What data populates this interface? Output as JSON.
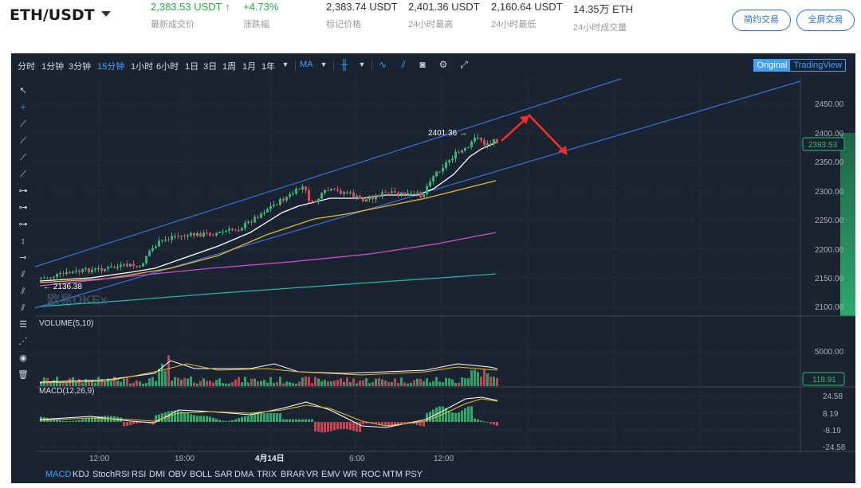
{
  "header": {
    "pair": "ETH/USDT",
    "stats": [
      {
        "value": "2,383.53 USDT ↑",
        "label": "最新成交价",
        "color": "green"
      },
      {
        "value": "+4.73%",
        "label": "涨跌幅",
        "color": "green"
      },
      {
        "value": "2,383.74 USDT",
        "label": "标记价格",
        "color": ""
      },
      {
        "value": "2,401.36 USDT",
        "label": "24小时最高",
        "color": ""
      },
      {
        "value": "2,160.64 USDT",
        "label": "24小时最低",
        "color": ""
      },
      {
        "value": "14.35万 ETH",
        "label": "24小时成交量",
        "color": ""
      }
    ],
    "btn_simple": "简约交易",
    "btn_fullscreen": "全屏交易"
  },
  "toolbar": {
    "intervals": [
      "分时",
      "1分钟",
      "3分钟",
      "15分钟",
      "1小时",
      "6小时",
      "1日",
      "3日",
      "1周",
      "1月",
      "1年"
    ],
    "active_interval": "15分钟",
    "indicator": "MA",
    "tabs": {
      "original": "Original",
      "tradingview": "TradingView"
    },
    "icons": [
      "candle-type-icon",
      "line-tool-icon",
      "draw-tool-icon",
      "camera-icon",
      "gear-icon",
      "fullscreen-icon"
    ]
  },
  "chart": {
    "price_ticks": [
      "2450.00",
      "2400.00",
      "2350.00",
      "2300.00",
      "2250.00",
      "2200.00",
      "2150.00",
      "2100.00"
    ],
    "last_price_tag": "2383.53",
    "high_label": "2401.36 →",
    "low_label": "← 2136.38",
    "watermark": "欧易OKEx",
    "volume_title": "VOLUME(5,10)",
    "volume_ticks": [
      "5000.00"
    ],
    "volume_tag": "118.91",
    "macd_title": "MACD(12,26,9)",
    "macd_ticks": [
      "24.58",
      "8.19",
      "-8.19",
      "-24.58"
    ],
    "time_labels": [
      "12:00",
      "18:00",
      "4月14日",
      "6:00",
      "12:00"
    ]
  },
  "bottom_indicators": [
    "MACD",
    "KDJ",
    "StochRSI",
    "RSI",
    "DMI",
    "OBV",
    "BOLL",
    "SAR",
    "DMA",
    "TRIX",
    "BRAR",
    "VR",
    "EMV",
    "WR",
    "ROC",
    "MTM",
    "PSY"
  ],
  "colors": {
    "up": "#2eb872",
    "down": "#e0475b",
    "accent": "#3fa0ff",
    "bg": "#1a2330",
    "arrow": "#ff2b2b"
  }
}
